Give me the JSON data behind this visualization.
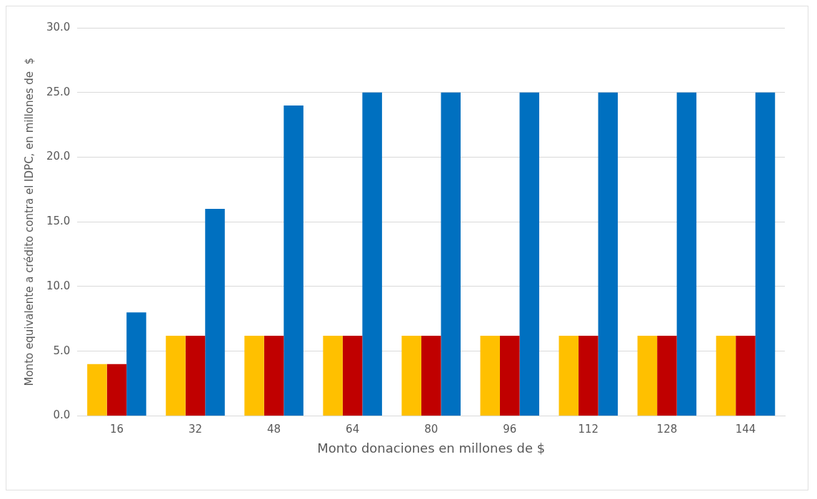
{
  "chart_data": {
    "type": "bar",
    "xlabel": "Monto donaciones en millones de $",
    "ylabel": "Monto equivalente a crédito contra el IDPC, en millones de  $",
    "categories": [
      "16",
      "32",
      "48",
      "64",
      "80",
      "96",
      "112",
      "128",
      "144"
    ],
    "series": [
      {
        "color": "#ffc000",
        "values": [
          4.0,
          6.2,
          6.2,
          6.2,
          6.2,
          6.2,
          6.2,
          6.2,
          6.2
        ]
      },
      {
        "color": "#c00000",
        "values": [
          4.0,
          6.2,
          6.2,
          6.2,
          6.2,
          6.2,
          6.2,
          6.2,
          6.2
        ]
      },
      {
        "color": "#0070c0",
        "values": [
          8.0,
          16.0,
          24.0,
          25.0,
          25.0,
          25.0,
          25.0,
          25.0,
          25.0
        ]
      }
    ],
    "ylim": [
      0,
      30
    ],
    "yticks": [
      {
        "value": 0,
        "label": "0.0"
      },
      {
        "value": 5,
        "label": "5.0"
      },
      {
        "value": 10,
        "label": "10.0"
      },
      {
        "value": 15,
        "label": "15.0"
      },
      {
        "value": 20,
        "label": "20.0"
      },
      {
        "value": 25,
        "label": "25.0"
      },
      {
        "value": 30,
        "label": "30.0"
      }
    ],
    "grid": "y",
    "legend": false
  }
}
